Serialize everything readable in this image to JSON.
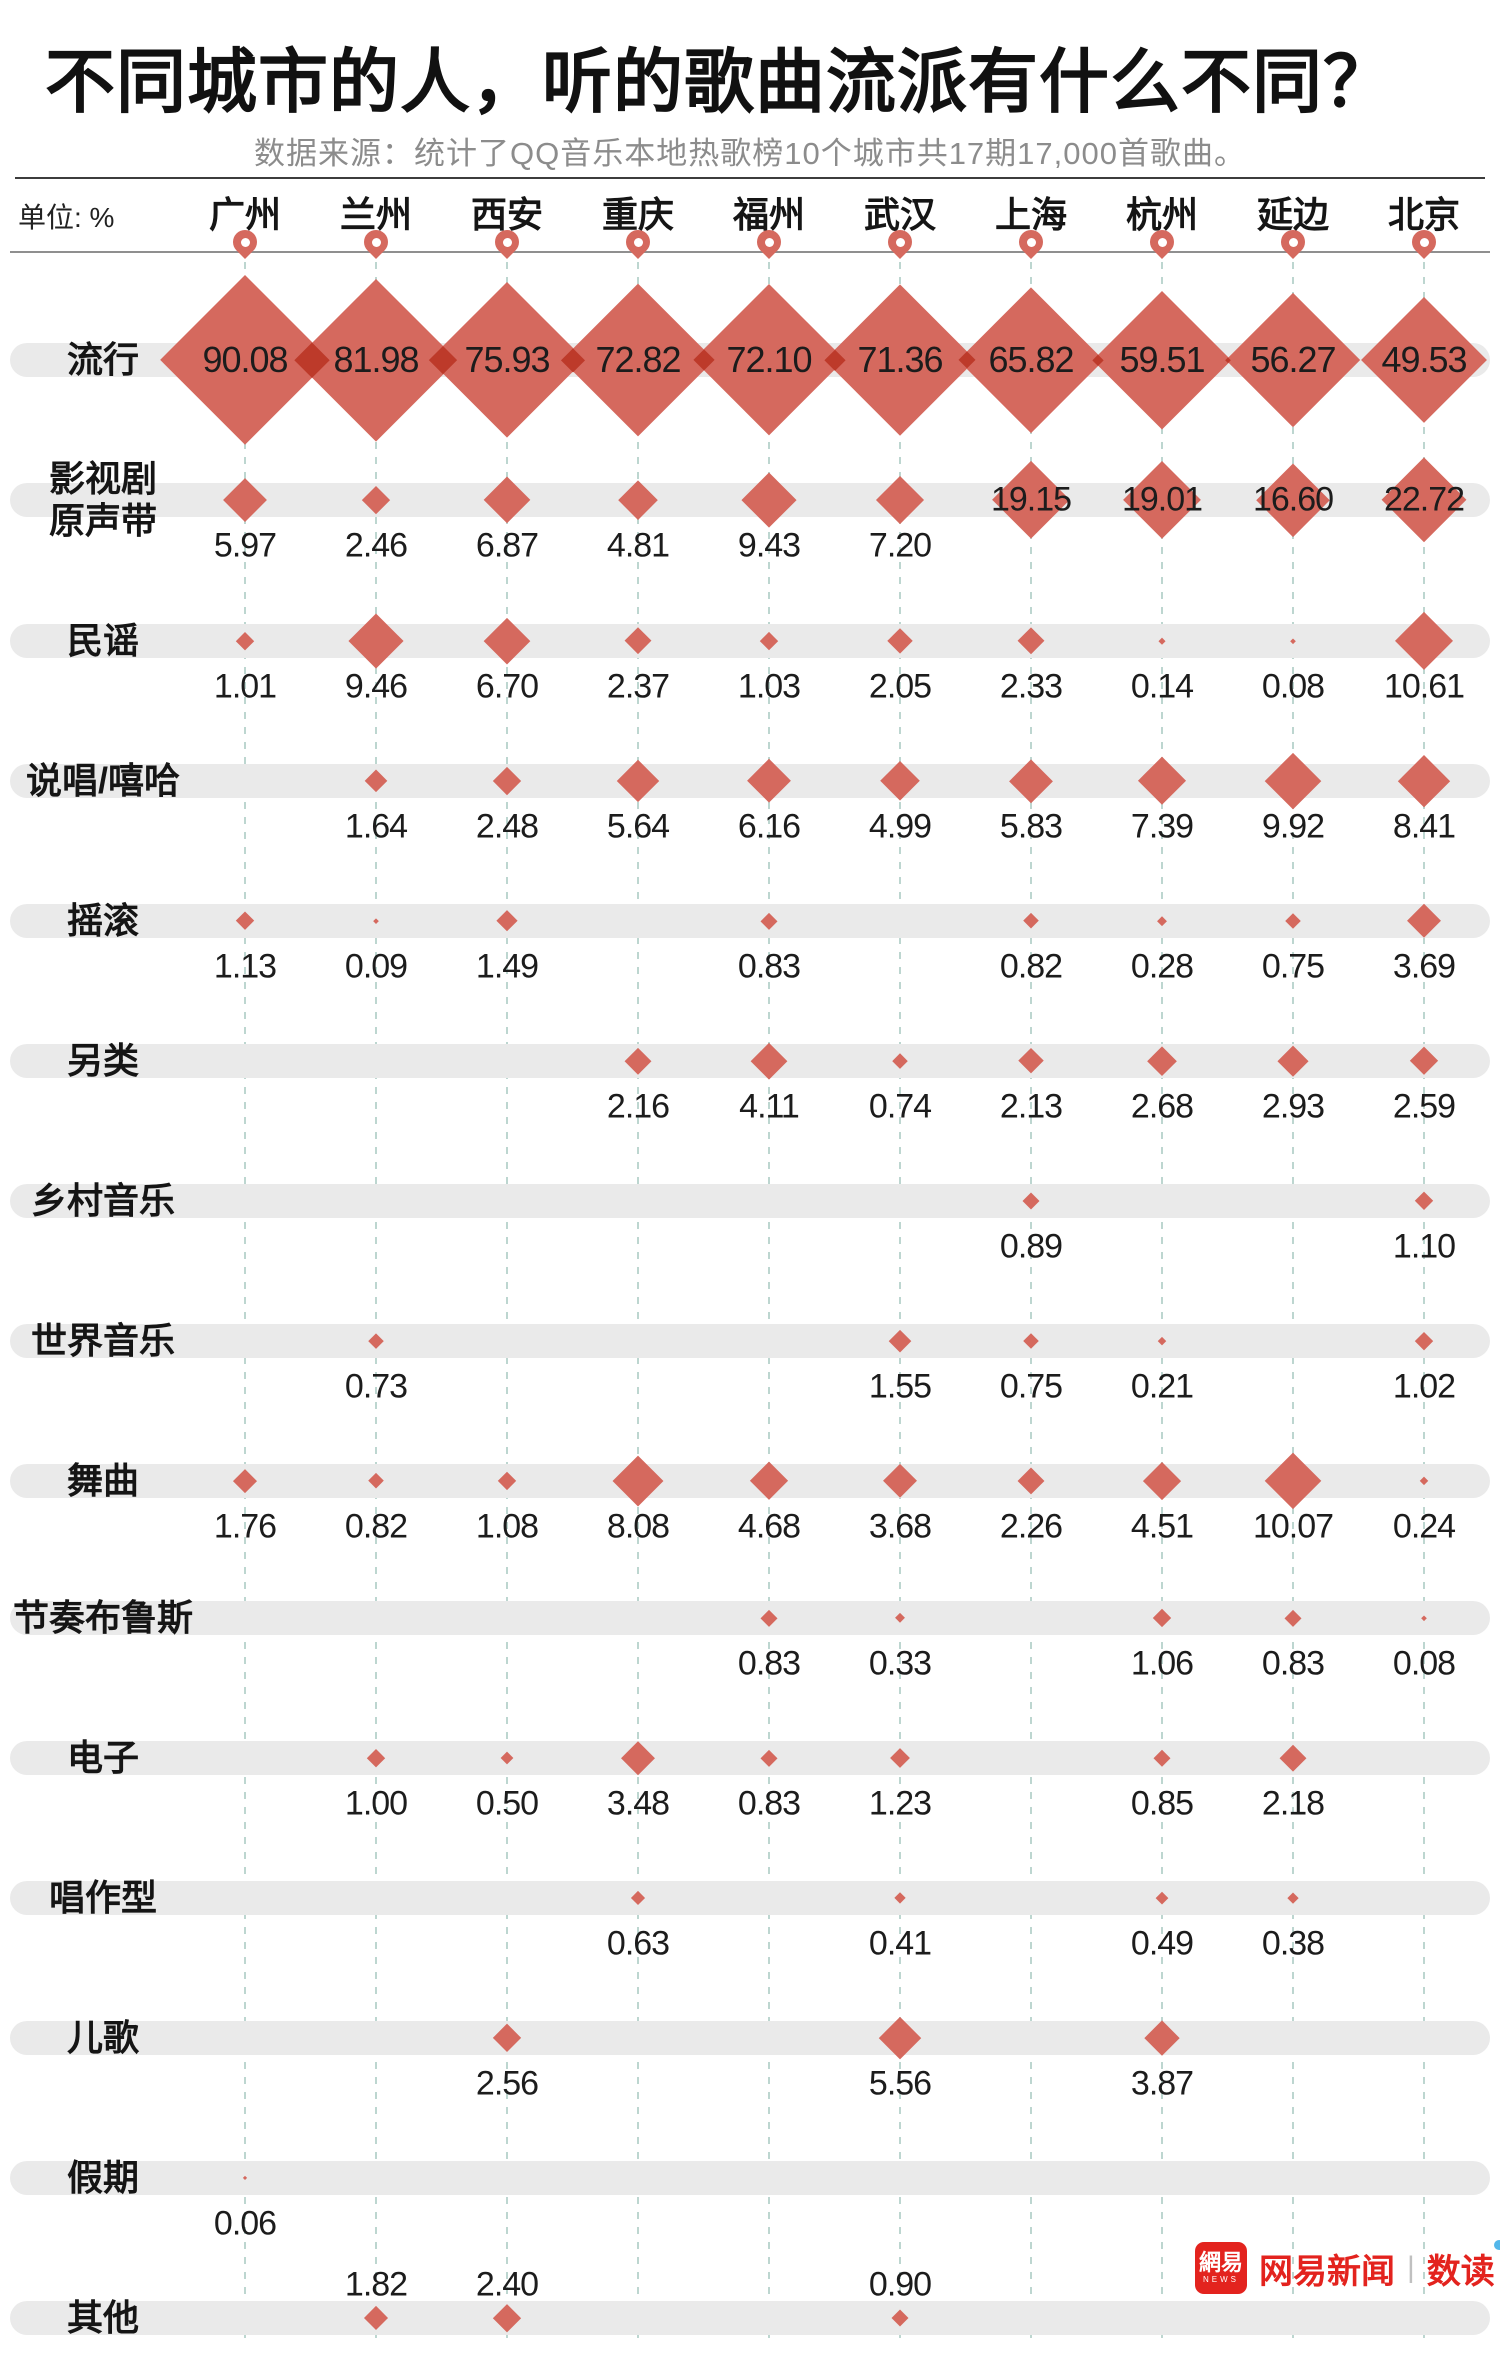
{
  "title": "不同城市的人，听的歌曲流派有什么不同？",
  "subtitle": "数据来源：统计了QQ音乐本地热歌榜10个城市共17期17,000首歌曲。",
  "unit_label": "单位: %",
  "logo": {
    "badge": "網易",
    "badge_sub": "NEWS",
    "brand": "网易新闻",
    "divider": "|",
    "product": "数读"
  },
  "colors": {
    "diamond": "#d5695e",
    "diamond_overlap": "#bd3a2a",
    "row_bar": "#eaeaea",
    "grid_dash": "#bdd6d0",
    "pin": "#d5695e",
    "header_line": "#8f8f8f",
    "text": "#1c1c1c",
    "subtitle_text": "#8c8c8c",
    "logo_red": "#e3231e",
    "dot_blue": "#53b7ea"
  },
  "chart_data": {
    "type": "scatter",
    "encoding": "diamond size proportional to value, matrix of genre rows x city columns",
    "unit": "%",
    "grid": "dashed vertical line per city column",
    "legend_position": "none",
    "cities": [
      "广州",
      "兰州",
      "西安",
      "重庆",
      "福州",
      "武汉",
      "上海",
      "杭州",
      "延边",
      "北京"
    ],
    "genres": [
      "流行",
      "影视剧原声带",
      "民谣",
      "说唱/嘻哈",
      "摇滚",
      "另类",
      "乡村音乐",
      "世界音乐",
      "舞曲",
      "节奏布鲁斯",
      "电子",
      "唱作型",
      "儿歌",
      "假期",
      "其他"
    ],
    "values": [
      [
        90.08,
        81.98,
        75.93,
        72.82,
        72.1,
        71.36,
        65.82,
        59.51,
        56.27,
        49.53
      ],
      [
        5.97,
        2.46,
        6.87,
        4.81,
        9.43,
        7.2,
        19.15,
        19.01,
        16.6,
        22.72
      ],
      [
        1.01,
        9.46,
        6.7,
        2.37,
        1.03,
        2.05,
        2.33,
        0.14,
        0.08,
        10.61
      ],
      [
        null,
        1.64,
        2.48,
        5.64,
        6.16,
        4.99,
        5.83,
        7.39,
        9.92,
        8.41
      ],
      [
        1.13,
        0.09,
        1.49,
        null,
        0.83,
        null,
        0.82,
        0.28,
        0.75,
        3.69
      ],
      [
        null,
        null,
        null,
        2.16,
        4.11,
        0.74,
        2.13,
        2.68,
        2.93,
        2.59
      ],
      [
        null,
        null,
        null,
        null,
        null,
        null,
        0.89,
        null,
        null,
        1.1
      ],
      [
        null,
        0.73,
        null,
        null,
        null,
        1.55,
        0.75,
        0.21,
        null,
        1.02
      ],
      [
        1.76,
        0.82,
        1.08,
        8.08,
        4.68,
        3.68,
        2.26,
        4.51,
        10.07,
        0.24
      ],
      [
        null,
        null,
        null,
        null,
        0.83,
        0.33,
        null,
        1.06,
        0.83,
        0.08
      ],
      [
        null,
        1.0,
        0.5,
        3.48,
        0.83,
        1.23,
        null,
        0.85,
        2.18,
        null
      ],
      [
        null,
        null,
        null,
        0.63,
        null,
        0.41,
        null,
        0.49,
        0.38,
        null
      ],
      [
        null,
        null,
        2.56,
        null,
        null,
        5.56,
        null,
        3.87,
        null,
        null
      ],
      [
        0.06,
        null,
        null,
        null,
        null,
        null,
        null,
        null,
        null,
        null
      ],
      [
        null,
        1.82,
        2.4,
        null,
        null,
        0.9,
        null,
        null,
        null,
        null
      ]
    ]
  }
}
